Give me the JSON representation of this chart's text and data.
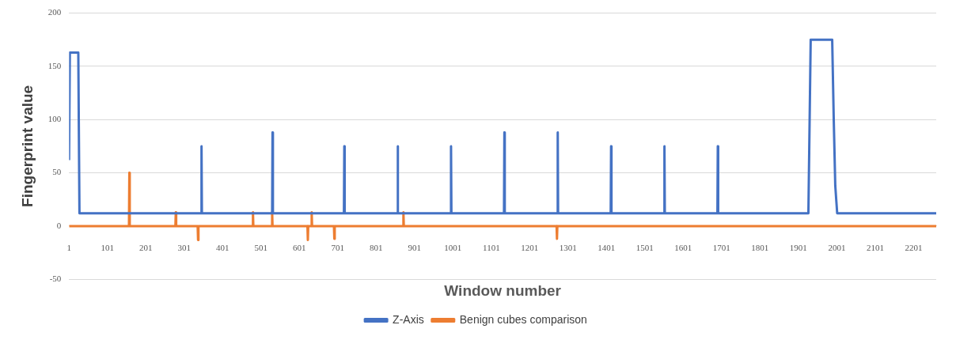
{
  "chart_data": {
    "type": "line",
    "xlabel": "Window number",
    "ylabel": "Fingerprint value",
    "xlim": [
      1,
      2260
    ],
    "xticks": [
      1,
      101,
      201,
      301,
      401,
      501,
      601,
      701,
      801,
      901,
      1001,
      1101,
      1201,
      1301,
      1401,
      1501,
      1601,
      1701,
      1801,
      1901,
      2001,
      2101,
      2201
    ],
    "ylim": [
      -50,
      200
    ],
    "yticks": [
      -50,
      0,
      50,
      100,
      150,
      200
    ],
    "grid": "y",
    "legend": "bottom",
    "marker": "none",
    "line_style": "solid",
    "series": [
      {
        "name": "Z-Axis",
        "color": "#4472c4",
        "x": [
          1,
          3,
          25,
          28,
          345,
          346,
          347,
          530,
          531,
          532,
          717,
          718,
          719,
          856,
          857,
          858,
          995,
          996,
          997,
          1134,
          1135,
          1136,
          1273,
          1274,
          1275,
          1412,
          1413,
          1414,
          1551,
          1552,
          1553,
          1690,
          1691,
          1692,
          1927,
          1933,
          1989,
          1993,
          1997,
          2002,
          2260
        ],
        "values": [
          62,
          163,
          163,
          12,
          12,
          75,
          12,
          12,
          88,
          12,
          12,
          75,
          12,
          12,
          75,
          12,
          12,
          75,
          12,
          12,
          88,
          12,
          12,
          88,
          12,
          12,
          75,
          12,
          12,
          75,
          12,
          12,
          75,
          12,
          12,
          175,
          175,
          101,
          38,
          12,
          12
        ]
      },
      {
        "name": "Benign cubes comparison",
        "color": "#ed7d31",
        "x": [
          1,
          157,
          158,
          159,
          278,
          279,
          280,
          336,
          337,
          338,
          479,
          480,
          481,
          529,
          530,
          531,
          622,
          623,
          624,
          632,
          633,
          634,
          691,
          692,
          693,
          871,
          872,
          873,
          1271,
          1272,
          1273,
          2260
        ],
        "values": [
          0,
          0,
          50,
          0,
          0,
          13,
          0,
          0,
          -13,
          0,
          0,
          13,
          0,
          0,
          13,
          0,
          0,
          -13,
          0,
          0,
          13,
          0,
          0,
          -12,
          0,
          0,
          13,
          0,
          0,
          -12,
          0,
          0
        ]
      }
    ]
  }
}
